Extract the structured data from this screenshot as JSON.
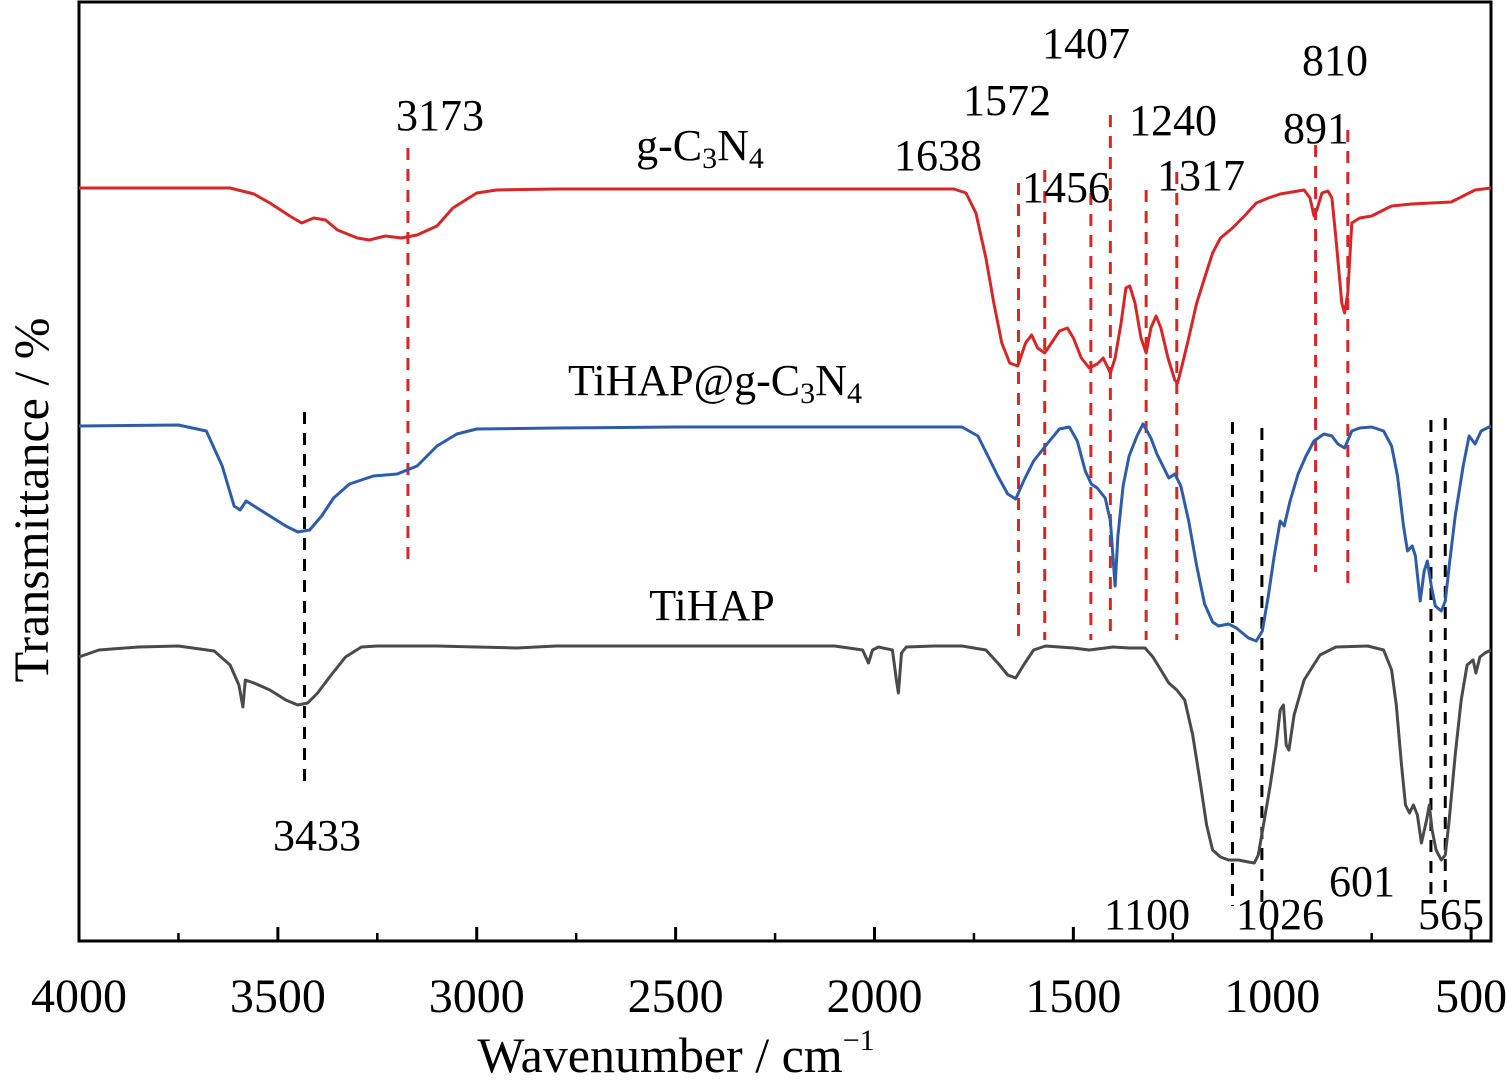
{
  "chart_data": {
    "type": "line",
    "xlabel": "Wavenumber / cm",
    "xlabel_sup": "−1",
    "ylabel": "Transmittance / %",
    "xlim": [
      4000,
      450
    ],
    "x_reversed": true,
    "x_ticks": [
      4000,
      3500,
      3000,
      2500,
      2000,
      1500,
      1000,
      500
    ],
    "x_tick_labels": [
      "4000",
      "3500",
      "3000",
      "2500",
      "2000",
      "1500",
      "1000",
      "500"
    ],
    "y_ticks_shown": false,
    "grid": false,
    "series": [
      {
        "name_parts": [
          "g-C",
          "3",
          "N",
          "4",
          ""
        ],
        "color": "#d62728",
        "baseline": 0,
        "points": [
          [
            4000,
            0
          ],
          [
            3720,
            0
          ],
          [
            3620,
            0
          ],
          [
            3560,
            -6
          ],
          [
            3520,
            -15
          ],
          [
            3470,
            -28
          ],
          [
            3440,
            -35
          ],
          [
            3410,
            -30
          ],
          [
            3380,
            -32
          ],
          [
            3350,
            -42
          ],
          [
            3300,
            -50
          ],
          [
            3270,
            -52
          ],
          [
            3230,
            -48
          ],
          [
            3190,
            -50
          ],
          [
            3150,
            -47
          ],
          [
            3100,
            -38
          ],
          [
            3060,
            -20
          ],
          [
            3000,
            -5
          ],
          [
            2950,
            -2
          ],
          [
            2800,
            -1
          ],
          [
            2500,
            -1
          ],
          [
            2200,
            -1
          ],
          [
            1900,
            -1
          ],
          [
            1800,
            -1
          ],
          [
            1770,
            -5
          ],
          [
            1745,
            -25
          ],
          [
            1720,
            -70
          ],
          [
            1700,
            -115
          ],
          [
            1680,
            -155
          ],
          [
            1660,
            -175
          ],
          [
            1640,
            -178
          ],
          [
            1620,
            -155
          ],
          [
            1605,
            -147
          ],
          [
            1590,
            -160
          ],
          [
            1572,
            -165
          ],
          [
            1555,
            -155
          ],
          [
            1535,
            -143
          ],
          [
            1515,
            -140
          ],
          [
            1500,
            -150
          ],
          [
            1480,
            -170
          ],
          [
            1460,
            -180
          ],
          [
            1440,
            -176
          ],
          [
            1425,
            -170
          ],
          [
            1407,
            -185
          ],
          [
            1395,
            -170
          ],
          [
            1380,
            -135
          ],
          [
            1368,
            -100
          ],
          [
            1358,
            -98
          ],
          [
            1345,
            -115
          ],
          [
            1330,
            -150
          ],
          [
            1317,
            -165
          ],
          [
            1305,
            -140
          ],
          [
            1292,
            -128
          ],
          [
            1280,
            -140
          ],
          [
            1262,
            -170
          ],
          [
            1245,
            -192
          ],
          [
            1238,
            -195
          ],
          [
            1225,
            -175
          ],
          [
            1210,
            -150
          ],
          [
            1190,
            -115
          ],
          [
            1170,
            -90
          ],
          [
            1150,
            -65
          ],
          [
            1130,
            -50
          ],
          [
            1100,
            -40
          ],
          [
            1070,
            -28
          ],
          [
            1040,
            -15
          ],
          [
            1010,
            -10
          ],
          [
            980,
            -6
          ],
          [
            950,
            -4
          ],
          [
            920,
            -2
          ],
          [
            905,
            -10
          ],
          [
            895,
            -28
          ],
          [
            888,
            -22
          ],
          [
            875,
            -5
          ],
          [
            860,
            -3
          ],
          [
            850,
            -10
          ],
          [
            840,
            -50
          ],
          [
            825,
            -115
          ],
          [
            818,
            -125
          ],
          [
            810,
            -105
          ],
          [
            800,
            -35
          ],
          [
            780,
            -30
          ],
          [
            750,
            -28
          ],
          [
            700,
            -18
          ],
          [
            650,
            -16
          ],
          [
            600,
            -15
          ],
          [
            550,
            -14
          ],
          [
            520,
            -8
          ],
          [
            490,
            -2
          ],
          [
            450,
            0
          ]
        ]
      },
      {
        "name_parts": [
          "TiHAP@g-C",
          "3",
          "N",
          "4",
          ""
        ],
        "color": "#2e5ca8",
        "baseline": 0,
        "points": [
          [
            4000,
            0
          ],
          [
            3750,
            1
          ],
          [
            3680,
            -5
          ],
          [
            3640,
            -40
          ],
          [
            3610,
            -80
          ],
          [
            3595,
            -84
          ],
          [
            3580,
            -75
          ],
          [
            3560,
            -80
          ],
          [
            3520,
            -90
          ],
          [
            3480,
            -100
          ],
          [
            3450,
            -106
          ],
          [
            3420,
            -104
          ],
          [
            3390,
            -90
          ],
          [
            3360,
            -72
          ],
          [
            3320,
            -58
          ],
          [
            3260,
            -50
          ],
          [
            3200,
            -48
          ],
          [
            3150,
            -40
          ],
          [
            3100,
            -20
          ],
          [
            3050,
            -8
          ],
          [
            3000,
            -3
          ],
          [
            2800,
            -2
          ],
          [
            2500,
            -1
          ],
          [
            2200,
            -1
          ],
          [
            1900,
            -1
          ],
          [
            1780,
            -1
          ],
          [
            1740,
            -10
          ],
          [
            1715,
            -30
          ],
          [
            1690,
            -50
          ],
          [
            1665,
            -68
          ],
          [
            1645,
            -73
          ],
          [
            1625,
            -55
          ],
          [
            1600,
            -35
          ],
          [
            1580,
            -25
          ],
          [
            1560,
            -15
          ],
          [
            1535,
            -3
          ],
          [
            1510,
            -1
          ],
          [
            1490,
            -15
          ],
          [
            1470,
            -45
          ],
          [
            1455,
            -58
          ],
          [
            1440,
            -62
          ],
          [
            1420,
            -72
          ],
          [
            1407,
            -95
          ],
          [
            1395,
            -160
          ],
          [
            1388,
            -110
          ],
          [
            1375,
            -60
          ],
          [
            1360,
            -30
          ],
          [
            1340,
            -10
          ],
          [
            1325,
            2
          ],
          [
            1305,
            -12
          ],
          [
            1290,
            -28
          ],
          [
            1275,
            -40
          ],
          [
            1260,
            -52
          ],
          [
            1245,
            -48
          ],
          [
            1230,
            -60
          ],
          [
            1210,
            -95
          ],
          [
            1190,
            -140
          ],
          [
            1170,
            -178
          ],
          [
            1150,
            -196
          ],
          [
            1135,
            -200
          ],
          [
            1110,
            -198
          ],
          [
            1090,
            -202
          ],
          [
            1060,
            -212
          ],
          [
            1040,
            -215
          ],
          [
            1025,
            -205
          ],
          [
            1010,
            -170
          ],
          [
            995,
            -130
          ],
          [
            980,
            -95
          ],
          [
            970,
            -100
          ],
          [
            955,
            -75
          ],
          [
            935,
            -48
          ],
          [
            915,
            -30
          ],
          [
            895,
            -15
          ],
          [
            870,
            -8
          ],
          [
            850,
            -10
          ],
          [
            835,
            -18
          ],
          [
            818,
            -22
          ],
          [
            800,
            -5
          ],
          [
            780,
            -2
          ],
          [
            750,
            -1
          ],
          [
            720,
            -5
          ],
          [
            700,
            -20
          ],
          [
            685,
            -50
          ],
          [
            670,
            -100
          ],
          [
            660,
            -125
          ],
          [
            648,
            -120
          ],
          [
            640,
            -130
          ],
          [
            628,
            -175
          ],
          [
            618,
            -145
          ],
          [
            610,
            -135
          ],
          [
            600,
            -160
          ],
          [
            590,
            -180
          ],
          [
            575,
            -185
          ],
          [
            565,
            -175
          ],
          [
            555,
            -140
          ],
          [
            540,
            -90
          ],
          [
            520,
            -40
          ],
          [
            505,
            -10
          ],
          [
            490,
            -18
          ],
          [
            475,
            -5
          ],
          [
            450,
            0
          ]
        ]
      },
      {
        "name_parts": [
          "TiHAP",
          "",
          "",
          "",
          ""
        ],
        "color": "#4a4a4a",
        "baseline": 0,
        "points": [
          [
            4000,
            -12
          ],
          [
            3950,
            -5
          ],
          [
            3850,
            -2
          ],
          [
            3750,
            -1
          ],
          [
            3660,
            -6
          ],
          [
            3620,
            -20
          ],
          [
            3598,
            -40
          ],
          [
            3588,
            -62
          ],
          [
            3582,
            -35
          ],
          [
            3560,
            -38
          ],
          [
            3520,
            -45
          ],
          [
            3480,
            -55
          ],
          [
            3450,
            -60
          ],
          [
            3425,
            -58
          ],
          [
            3400,
            -48
          ],
          [
            3370,
            -32
          ],
          [
            3330,
            -12
          ],
          [
            3290,
            -2
          ],
          [
            3250,
            -1
          ],
          [
            3100,
            -1
          ],
          [
            3000,
            -2
          ],
          [
            2900,
            -3
          ],
          [
            2800,
            -1
          ],
          [
            2600,
            -1
          ],
          [
            2400,
            -1
          ],
          [
            2200,
            -1
          ],
          [
            2100,
            -1
          ],
          [
            2030,
            -5
          ],
          [
            2015,
            -18
          ],
          [
            2005,
            -5
          ],
          [
            1990,
            -2
          ],
          [
            1955,
            -5
          ],
          [
            1945,
            -35
          ],
          [
            1940,
            -48
          ],
          [
            1932,
            -8
          ],
          [
            1920,
            -2
          ],
          [
            1850,
            -1
          ],
          [
            1780,
            -1
          ],
          [
            1720,
            -5
          ],
          [
            1690,
            -18
          ],
          [
            1665,
            -30
          ],
          [
            1645,
            -33
          ],
          [
            1625,
            -20
          ],
          [
            1600,
            -5
          ],
          [
            1570,
            -1
          ],
          [
            1500,
            -3
          ],
          [
            1460,
            -5
          ],
          [
            1400,
            -2
          ],
          [
            1360,
            -3
          ],
          [
            1320,
            -3
          ],
          [
            1300,
            -12
          ],
          [
            1280,
            -25
          ],
          [
            1260,
            -38
          ],
          [
            1240,
            -45
          ],
          [
            1220,
            -55
          ],
          [
            1200,
            -90
          ],
          [
            1180,
            -140
          ],
          [
            1165,
            -180
          ],
          [
            1150,
            -205
          ],
          [
            1130,
            -212
          ],
          [
            1110,
            -215
          ],
          [
            1085,
            -215
          ],
          [
            1060,
            -217
          ],
          [
            1045,
            -218
          ],
          [
            1035,
            -210
          ],
          [
            1020,
            -175
          ],
          [
            1005,
            -140
          ],
          [
            990,
            -100
          ],
          [
            980,
            -65
          ],
          [
            972,
            -60
          ],
          [
            965,
            -100
          ],
          [
            958,
            -105
          ],
          [
            945,
            -70
          ],
          [
            920,
            -35
          ],
          [
            880,
            -10
          ],
          [
            840,
            -2
          ],
          [
            760,
            -1
          ],
          [
            720,
            -5
          ],
          [
            700,
            -25
          ],
          [
            688,
            -60
          ],
          [
            675,
            -120
          ],
          [
            665,
            -160
          ],
          [
            655,
            -168
          ],
          [
            645,
            -160
          ],
          [
            635,
            -170
          ],
          [
            625,
            -198
          ],
          [
            612,
            -175
          ],
          [
            605,
            -160
          ],
          [
            598,
            -185
          ],
          [
            588,
            -205
          ],
          [
            575,
            -215
          ],
          [
            565,
            -210
          ],
          [
            555,
            -175
          ],
          [
            540,
            -110
          ],
          [
            525,
            -55
          ],
          [
            510,
            -20
          ],
          [
            495,
            -15
          ],
          [
            488,
            -28
          ],
          [
            478,
            -12
          ],
          [
            465,
            -8
          ],
          [
            450,
            -5
          ]
        ]
      }
    ],
    "annotations": [
      {
        "label": "3173",
        "x": 3173,
        "color": "#d62728"
      },
      {
        "label": "1638",
        "x": 1638,
        "color": "#d62728"
      },
      {
        "label": "1572",
        "x": 1572,
        "color": "#d62728"
      },
      {
        "label": "1456",
        "x": 1456,
        "color": "#d62728"
      },
      {
        "label": "1407",
        "x": 1407,
        "color": "#d62728"
      },
      {
        "label": "1317",
        "x": 1317,
        "color": "#d62728"
      },
      {
        "label": "1240",
        "x": 1240,
        "color": "#d62728"
      },
      {
        "label": "891",
        "x": 891,
        "color": "#d62728"
      },
      {
        "label": "810",
        "x": 810,
        "color": "#d62728"
      },
      {
        "label": "3433",
        "x": 3433,
        "color": "#000000"
      },
      {
        "label": "1100",
        "x": 1100,
        "color": "#000000"
      },
      {
        "label": "1026",
        "x": 1026,
        "color": "#000000"
      },
      {
        "label": "601",
        "x": 601,
        "color": "#000000"
      },
      {
        "label": "565",
        "x": 565,
        "color": "#000000"
      }
    ]
  }
}
